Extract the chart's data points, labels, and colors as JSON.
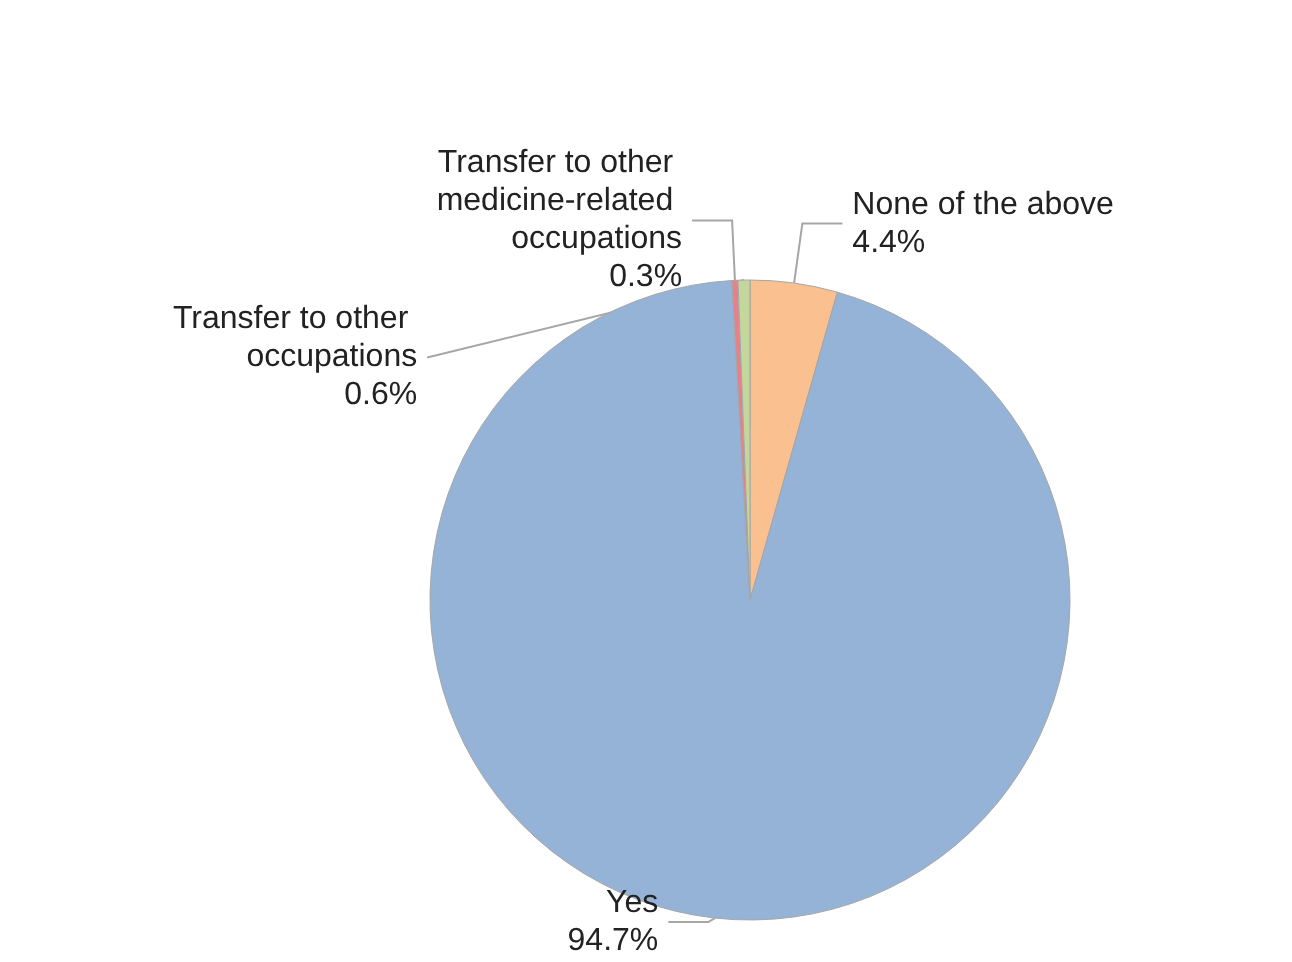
{
  "chart_data": {
    "type": "pie",
    "categories": [
      "None of the above",
      "Yes",
      "Transfer to other medicine-related occupations",
      "Transfer to other occupations"
    ],
    "values": [
      4.4,
      94.7,
      0.3,
      0.6
    ],
    "value_labels": [
      "4.4%",
      "94.7%",
      "0.3%",
      "0.6%"
    ],
    "colors": [
      "#fac090",
      "#95b3d7",
      "#e6808a",
      "#c3d69b"
    ],
    "legend": false
  }
}
